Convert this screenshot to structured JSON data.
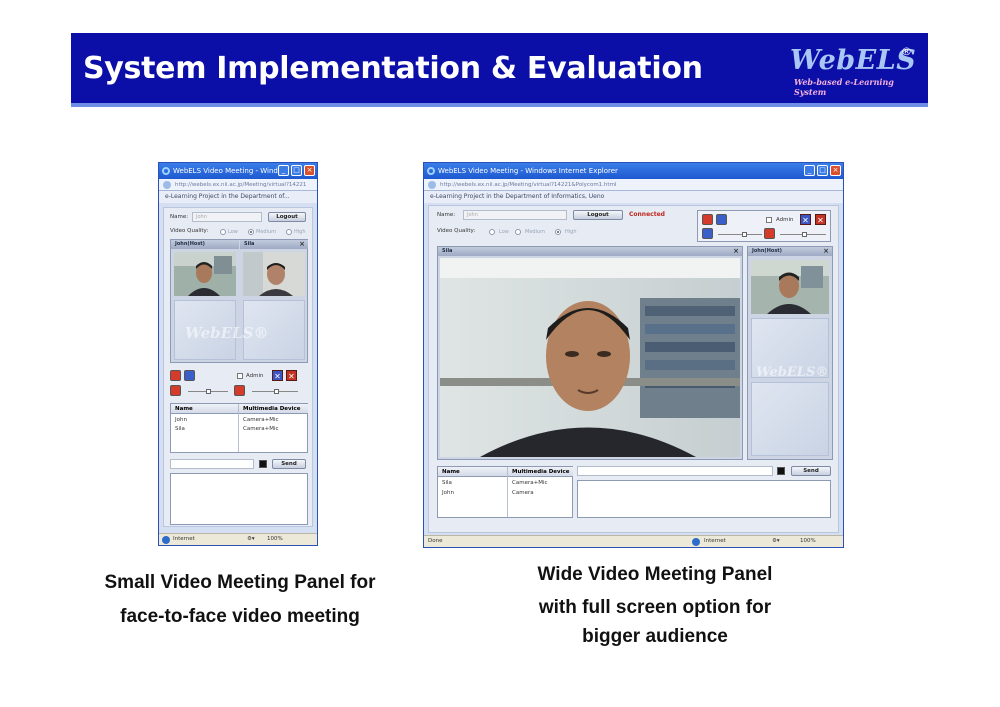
{
  "slide": {
    "title": "System Implementation & Evaluation",
    "logo": {
      "name": "WebELS",
      "registered": "®",
      "tagline": "Web-based e-Learning System"
    }
  },
  "small_window": {
    "window_title": "WebELS Video Meeting - Windo...",
    "address": "http://webels.ex.nii.ac.jp/Meeting/virtual?14221",
    "app_title": "e-Learning Project in the Department of...",
    "name_label": "Name:",
    "name_value": "John",
    "logout_label": "Logout",
    "quality_label": "Video Quality:",
    "quality_options": [
      "Low",
      "Medium",
      "High"
    ],
    "selected_quality": "Medium",
    "panels": [
      {
        "label": "John(Host)"
      },
      {
        "label": "Sila"
      }
    ],
    "watermark": "WebELS®",
    "admin_label": "Admin",
    "table_headers": [
      "Name",
      "Multimedia Device"
    ],
    "rows": [
      [
        "John",
        "Camera+Mic"
      ],
      [
        "Sila",
        "Camera+Mic"
      ]
    ],
    "send_label": "Send",
    "status": {
      "zone": "Internet",
      "zoom": "100%"
    }
  },
  "wide_window": {
    "window_title": "WebELS Video Meeting - Windows Internet Explorer",
    "address": "http://webels.ex.nii.ac.jp/Meeting/virtual?14221&Polycom1.html",
    "app_title": "e-Learning Project in the Department of Informatics, Ueno",
    "name_label": "Name:",
    "name_value": "John",
    "logout_label": "Logout",
    "connection_status": "Connected",
    "admin_label": "Admin",
    "quality_label": "Video Quality:",
    "quality_options": [
      "Low",
      "Medium",
      "High"
    ],
    "selected_quality": "High",
    "main_panel_label": "Sila",
    "side_panel_label": "John(Host)",
    "watermark": "WebELS®",
    "table_headers": [
      "Name",
      "Multimedia Device"
    ],
    "rows": [
      [
        "Sila",
        "Camera+Mic"
      ],
      [
        "John",
        "Camera"
      ]
    ],
    "send_label": "Send",
    "status": {
      "left": "Done",
      "zone": "Internet",
      "zoom": "100%"
    }
  },
  "captions": {
    "left_line1": "Small Video Meeting Panel for",
    "left_line2": "face-to-face video meeting",
    "right_line1": "Wide Video Meeting Panel",
    "right_line2": "with full screen option for",
    "right_line3": "bigger audience"
  },
  "colors": {
    "banner": "#0b0fa8",
    "accent": "#6d8fe8",
    "connected": "#c0261c"
  }
}
